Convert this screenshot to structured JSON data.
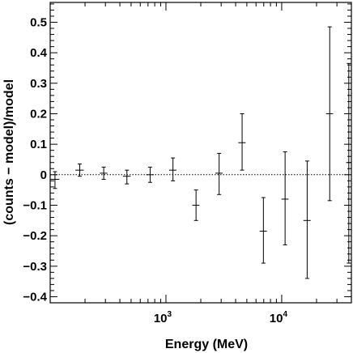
{
  "chart_data": {
    "type": "scatter",
    "xlabel": "Energy (MeV)",
    "ylabel": "(counts − model)/model",
    "x_scale": "log",
    "xlim": [
      100,
      40000
    ],
    "ylim": [
      -0.42,
      0.565
    ],
    "y_ticks": [
      -0.4,
      -0.3,
      -0.2,
      -0.1,
      0,
      0.1,
      0.2,
      0.3,
      0.4,
      0.5
    ],
    "y_tick_labels": [
      "−0.4",
      "−0.3",
      "−0.2",
      "−0.1",
      "0",
      "0.1",
      "0.2",
      "0.3",
      "0.4",
      "0.5"
    ],
    "x_major_ticks": [
      1000,
      10000
    ],
    "x_tick_labels": [
      {
        "base": "10",
        "exp": "3"
      },
      {
        "base": "10",
        "exp": "4"
      }
    ],
    "reference_line": {
      "y": 0,
      "style": "dotted"
    },
    "grid": false,
    "points": [
      {
        "x": 110,
        "xerr_lo": 100,
        "xerr_hi": 120,
        "y": -0.015,
        "ylo": -0.045,
        "yhi": 0.01
      },
      {
        "x": 180,
        "xerr_lo": 165,
        "xerr_hi": 195,
        "y": 0.015,
        "ylo": -0.005,
        "yhi": 0.035
      },
      {
        "x": 290,
        "xerr_lo": 268,
        "xerr_hi": 312,
        "y": 0.005,
        "ylo": -0.015,
        "yhi": 0.025
      },
      {
        "x": 460,
        "xerr_lo": 425,
        "xerr_hi": 495,
        "y": -0.005,
        "ylo": -0.03,
        "yhi": 0.015
      },
      {
        "x": 730,
        "xerr_lo": 675,
        "xerr_hi": 785,
        "y": 0.0,
        "ylo": -0.025,
        "yhi": 0.025
      },
      {
        "x": 1150,
        "xerr_lo": 1065,
        "xerr_hi": 1235,
        "y": 0.015,
        "ylo": -0.02,
        "yhi": 0.055
      },
      {
        "x": 1820,
        "xerr_lo": 1690,
        "xerr_hi": 1950,
        "y": -0.1,
        "ylo": -0.15,
        "yhi": -0.05
      },
      {
        "x": 2880,
        "xerr_lo": 2670,
        "xerr_hi": 3090,
        "y": 0.005,
        "ylo": -0.065,
        "yhi": 0.07
      },
      {
        "x": 4550,
        "xerr_lo": 4220,
        "xerr_hi": 4880,
        "y": 0.105,
        "ylo": 0.015,
        "yhi": 0.2
      },
      {
        "x": 6950,
        "xerr_lo": 6450,
        "xerr_hi": 7450,
        "y": -0.185,
        "ylo": -0.29,
        "yhi": -0.075
      },
      {
        "x": 10700,
        "xerr_lo": 9950,
        "xerr_hi": 11450,
        "y": -0.08,
        "ylo": -0.23,
        "yhi": 0.075
      },
      {
        "x": 16600,
        "xerr_lo": 15400,
        "xerr_hi": 17800,
        "y": -0.15,
        "ylo": -0.34,
        "yhi": 0.045
      },
      {
        "x": 26000,
        "xerr_lo": 24200,
        "xerr_hi": 27800,
        "y": 0.2,
        "ylo": -0.085,
        "yhi": 0.485
      },
      {
        "x": 38000,
        "xerr_lo": 36000,
        "xerr_hi": 40000,
        "y": 0.04,
        "ylo": -0.29,
        "yhi": 0.365
      }
    ]
  }
}
